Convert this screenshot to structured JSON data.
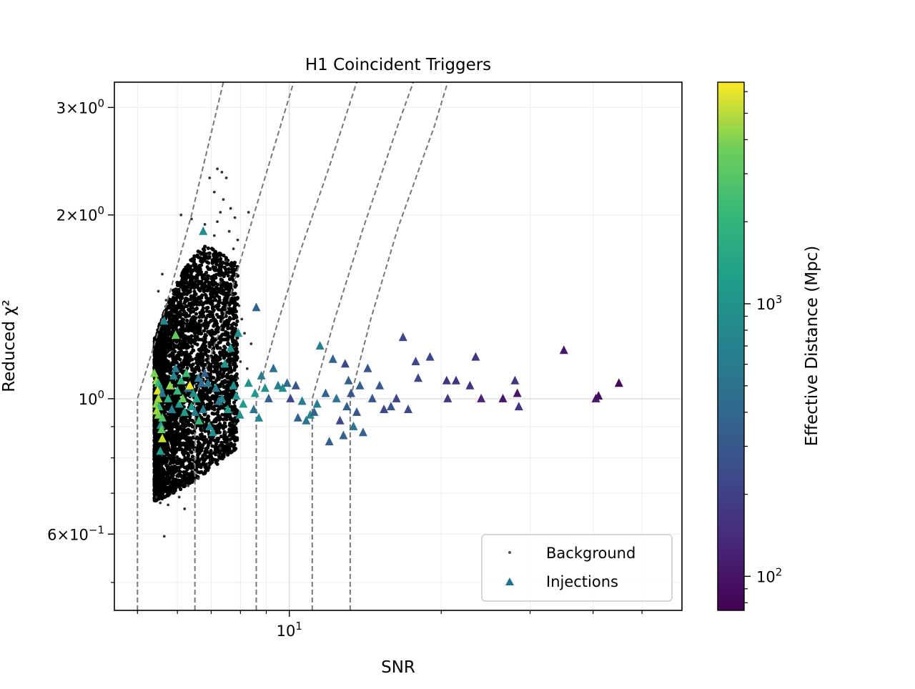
{
  "chart_data": {
    "type": "scatter",
    "title": "H1 Coincident Triggers",
    "xlabel": "SNR",
    "ylabel": "Reduced χ²",
    "xscale": "log",
    "yscale": "log",
    "xlim": [
      4.5,
      60
    ],
    "ylim": [
      0.45,
      3.3
    ],
    "grid": true,
    "x_major_ticks": [
      {
        "value": 10,
        "base": "10",
        "exp": "1"
      }
    ],
    "y_major_ticks": [
      {
        "value": 3,
        "mant": "3",
        "base": "10",
        "exp": "0"
      },
      {
        "value": 2,
        "mant": "2",
        "base": "10",
        "exp": "0"
      },
      {
        "value": 1,
        "mant": "",
        "base": "10",
        "exp": "0"
      },
      {
        "value": 0.6,
        "mant": "6",
        "base": "10",
        "exp": "−1"
      }
    ],
    "legend": {
      "placement": "lower right",
      "entries": [
        {
          "label": "Background",
          "marker": "dot",
          "color": "#555555"
        },
        {
          "label": "Injections",
          "marker": "triangle",
          "color": "#21718e"
        }
      ]
    },
    "colorbar": {
      "label": "Effective Distance (Mpc)",
      "scale": "log",
      "range": [
        75,
        6500
      ],
      "colormap": "viridis",
      "ticks": [
        {
          "value": 100,
          "base": "10",
          "exp": "2"
        },
        {
          "value": 1000,
          "base": "10",
          "exp": "3"
        }
      ]
    },
    "contours": [
      {
        "snr_start": 5.0,
        "curve": [
          [
            5.0,
            1.0
          ],
          [
            5.6,
            1.35
          ],
          [
            6.4,
            2.0
          ],
          [
            7.4,
            3.3
          ]
        ]
      },
      {
        "snr_start": 6.5,
        "curve": [
          [
            6.5,
            1.0
          ],
          [
            7.3,
            1.3
          ],
          [
            8.5,
            2.0
          ],
          [
            10.2,
            3.3
          ]
        ]
      },
      {
        "snr_start": 8.6,
        "curve": [
          [
            8.6,
            1.0
          ],
          [
            9.4,
            1.3
          ],
          [
            10.4,
            1.7
          ],
          [
            12.0,
            2.4
          ],
          [
            13.6,
            3.3
          ]
        ]
      },
      {
        "snr_start": 11.1,
        "curve": [
          [
            11.1,
            1.0
          ],
          [
            12.3,
            1.35
          ],
          [
            14.0,
            1.9
          ],
          [
            16.4,
            2.8
          ],
          [
            17.6,
            3.3
          ]
        ]
      },
      {
        "snr_start": 13.2,
        "curve": [
          [
            13.2,
            1.0
          ],
          [
            14.5,
            1.35
          ],
          [
            16.4,
            1.9
          ],
          [
            19.4,
            2.8
          ],
          [
            20.6,
            3.3
          ]
        ]
      }
    ],
    "series": [
      {
        "name": "Background",
        "marker": "dot",
        "color": "#000000",
        "dense_region": {
          "snr_min": 5.4,
          "snr_max": 7.9,
          "chi_min": 0.67,
          "chi_max": 1.85
        },
        "points": [
          [
            6.95,
            2.3
          ],
          [
            7.2,
            2.38
          ],
          [
            7.35,
            2.35
          ],
          [
            7.5,
            2.3
          ],
          [
            7.1,
            2.18
          ],
          [
            7.4,
            2.12
          ],
          [
            7.65,
            2.05
          ],
          [
            7.3,
            2.02
          ],
          [
            7.8,
            1.98
          ],
          [
            8.3,
            2.02
          ],
          [
            7.2,
            1.95
          ],
          [
            7.6,
            1.88
          ],
          [
            7.9,
            1.82
          ],
          [
            7.75,
            1.76
          ],
          [
            6.1,
            2.0
          ],
          [
            6.8,
            1.93
          ],
          [
            6.4,
            1.97
          ],
          [
            7.1,
            1.85
          ],
          [
            6.9,
            1.72
          ],
          [
            7.5,
            1.68
          ],
          [
            7.85,
            1.6
          ],
          [
            7.3,
            1.55
          ],
          [
            7.7,
            1.48
          ],
          [
            7.95,
            1.42
          ],
          [
            8.05,
            1.35
          ],
          [
            8.15,
            1.28
          ],
          [
            8.4,
            1.23
          ],
          [
            8.0,
            1.15
          ],
          [
            8.25,
            1.12
          ],
          [
            7.9,
            1.08
          ],
          [
            7.85,
            1.02
          ],
          [
            7.7,
            0.95
          ],
          [
            7.8,
            0.91
          ],
          [
            7.5,
            0.88
          ],
          [
            7.6,
            0.85
          ],
          [
            7.3,
            0.83
          ],
          [
            7.2,
            0.81
          ],
          [
            6.9,
            0.78
          ],
          [
            6.6,
            0.74
          ],
          [
            6.3,
            0.72
          ],
          [
            6.05,
            0.69
          ],
          [
            5.75,
            0.67
          ],
          [
            5.55,
            0.675
          ],
          [
            5.45,
            0.69
          ],
          [
            6.2,
            0.66
          ],
          [
            5.65,
            0.595
          ],
          [
            5.5,
            1.5
          ],
          [
            5.6,
            1.6
          ],
          [
            5.7,
            1.45
          ]
        ]
      },
      {
        "name": "Injections",
        "marker": "triangle",
        "color_by": "effective_distance_mpc",
        "points": [
          [
            6.75,
            1.88,
            650
          ],
          [
            5.95,
            1.27,
            2200
          ],
          [
            5.65,
            1.34,
            600
          ],
          [
            5.4,
            1.1,
            2600
          ],
          [
            5.45,
            1.07,
            3000
          ],
          [
            5.5,
            1.06,
            1500
          ],
          [
            5.55,
            1.04,
            800
          ],
          [
            5.48,
            1.03,
            5200
          ],
          [
            5.6,
            1.02,
            400
          ],
          [
            5.5,
            1.0,
            3600
          ],
          [
            5.45,
            0.98,
            2800
          ],
          [
            5.52,
            0.97,
            1400
          ],
          [
            5.46,
            0.955,
            3400
          ],
          [
            5.5,
            0.94,
            2700
          ],
          [
            5.6,
            0.93,
            1900
          ],
          [
            5.56,
            0.905,
            700
          ],
          [
            5.58,
            0.89,
            2100
          ],
          [
            5.6,
            0.86,
            4500
          ],
          [
            5.55,
            0.82,
            900
          ],
          [
            5.75,
            1.0,
            1200
          ],
          [
            5.8,
            1.05,
            3000
          ],
          [
            5.85,
            0.96,
            500
          ],
          [
            5.9,
            1.09,
            600
          ],
          [
            5.95,
            1.12,
            500
          ],
          [
            6.0,
            1.03,
            1500
          ],
          [
            6.05,
            0.98,
            800
          ],
          [
            6.1,
            1.07,
            1400
          ],
          [
            6.15,
            1.0,
            2300
          ],
          [
            6.2,
            0.95,
            900
          ],
          [
            6.25,
            1.1,
            1600
          ],
          [
            6.3,
            1.04,
            400
          ],
          [
            6.35,
            1.05,
            6000
          ],
          [
            6.4,
            0.97,
            900
          ],
          [
            6.45,
            1.02,
            700
          ],
          [
            6.5,
            0.95,
            500
          ],
          [
            6.55,
            1.0,
            1000
          ],
          [
            6.6,
            1.08,
            450
          ],
          [
            6.62,
            0.92,
            1500
          ],
          [
            6.7,
            1.06,
            350
          ],
          [
            6.75,
            0.96,
            500
          ],
          [
            6.8,
            1.1,
            300
          ],
          [
            6.9,
            1.06,
            450
          ],
          [
            6.95,
            0.9,
            600
          ],
          [
            7.05,
            0.88,
            700
          ],
          [
            7.15,
            1.04,
            500
          ],
          [
            7.25,
            0.99,
            400
          ],
          [
            7.35,
            1.0,
            600
          ],
          [
            7.45,
            1.14,
            800
          ],
          [
            7.55,
            0.96,
            900
          ],
          [
            7.65,
            1.21,
            700
          ],
          [
            7.75,
            1.05,
            700
          ],
          [
            7.85,
            1.01,
            800
          ],
          [
            7.92,
            1.28,
            700
          ],
          [
            7.98,
            0.94,
            700
          ],
          [
            8.1,
            0.98,
            900
          ],
          [
            8.3,
            1.06,
            700
          ],
          [
            8.5,
            0.96,
            400
          ],
          [
            8.55,
            1.02,
            800
          ],
          [
            8.6,
            1.41,
            300
          ],
          [
            8.7,
            0.93,
            600
          ],
          [
            8.8,
            1.09,
            500
          ],
          [
            8.95,
            1.04,
            700
          ],
          [
            9.1,
            1.0,
            300
          ],
          [
            9.3,
            1.12,
            400
          ],
          [
            9.5,
            1.05,
            500
          ],
          [
            9.7,
            1.04,
            700
          ],
          [
            9.9,
            1.06,
            350
          ],
          [
            10.05,
            1.0,
            200
          ],
          [
            10.3,
            1.05,
            250
          ],
          [
            10.4,
            0.93,
            300
          ],
          [
            10.6,
            0.99,
            500
          ],
          [
            10.8,
            0.92,
            400
          ],
          [
            11.0,
            0.94,
            600
          ],
          [
            11.2,
            0.95,
            300
          ],
          [
            11.35,
            0.98,
            500
          ],
          [
            11.5,
            1.22,
            500
          ],
          [
            11.8,
            1.02,
            300
          ],
          [
            12.0,
            0.85,
            300
          ],
          [
            12.2,
            1.16,
            300
          ],
          [
            12.4,
            1.0,
            400
          ],
          [
            12.6,
            0.92,
            200
          ],
          [
            12.8,
            0.87,
            300
          ],
          [
            12.9,
            1.14,
            200
          ],
          [
            13.0,
            0.97,
            300
          ],
          [
            13.1,
            1.07,
            300
          ],
          [
            13.25,
            1.02,
            250
          ],
          [
            13.4,
            0.9,
            400
          ],
          [
            13.6,
            0.95,
            250
          ],
          [
            13.8,
            1.05,
            300
          ],
          [
            14.0,
            0.88,
            300
          ],
          [
            14.3,
            1.12,
            250
          ],
          [
            14.6,
            1.0,
            250
          ],
          [
            15.1,
            1.05,
            250
          ],
          [
            15.4,
            0.96,
            200
          ],
          [
            15.9,
            0.97,
            250
          ],
          [
            16.3,
            1.0,
            200
          ],
          [
            16.8,
            1.26,
            200
          ],
          [
            17.2,
            0.96,
            200
          ],
          [
            17.8,
            1.15,
            200
          ],
          [
            18.0,
            1.08,
            200
          ],
          [
            19.0,
            1.17,
            200
          ],
          [
            20.5,
            1.07,
            150
          ],
          [
            20.6,
            1.0,
            150
          ],
          [
            21.4,
            1.07,
            150
          ],
          [
            22.8,
            1.05,
            150
          ],
          [
            23.4,
            1.17,
            150
          ],
          [
            24.0,
            1.0,
            120
          ],
          [
            26.5,
            1.0,
            100
          ],
          [
            28.0,
            1.07,
            150
          ],
          [
            28.3,
            1.02,
            100
          ],
          [
            28.5,
            0.97,
            150
          ],
          [
            35.0,
            1.2,
            100
          ],
          [
            40.5,
            1.0,
            100
          ],
          [
            41.0,
            1.01,
            90
          ],
          [
            45.0,
            1.06,
            80
          ]
        ]
      }
    ]
  }
}
